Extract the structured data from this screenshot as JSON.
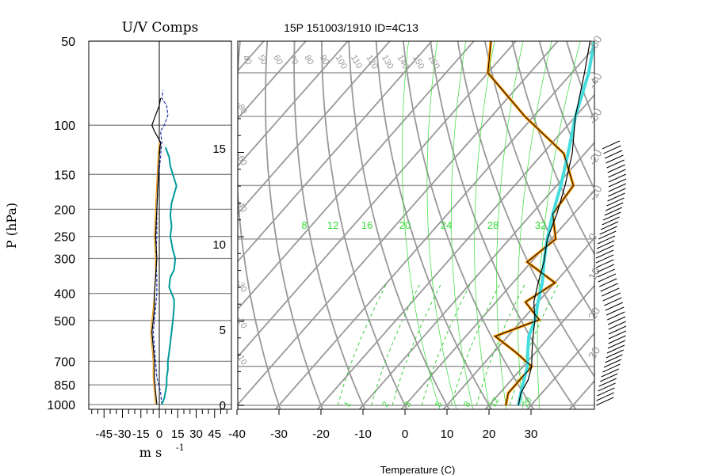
{
  "chart_data": [
    {
      "type": "line",
      "title": "U/V Comps",
      "xlabel": "m s",
      "xlabel_exponent": "-1",
      "ylabel": "P (hPa)",
      "xlim": [
        -55,
        55
      ],
      "ylim": [
        1000,
        50
      ],
      "y_scale": "log",
      "x_ticks": [
        "-45",
        "-30",
        "-15",
        "0",
        "15",
        "30",
        "45"
      ],
      "y_ticks": [
        "50",
        "100",
        "150",
        "200",
        "250",
        "300",
        "400",
        "500",
        "700",
        "850",
        "1000"
      ],
      "series": [
        {
          "color": "#2233aa",
          "points": [
            [
              2,
              1000
            ],
            [
              1,
              900
            ],
            [
              -2,
              800
            ],
            [
              -3,
              700
            ],
            [
              -4,
              620
            ],
            [
              -5,
              550
            ],
            [
              -4,
              500
            ],
            [
              -3,
              450
            ],
            [
              -2,
              400
            ],
            [
              -2,
              350
            ],
            [
              -3,
              300
            ],
            [
              -2,
              250
            ],
            [
              -2,
              200
            ],
            [
              -1,
              160
            ],
            [
              1,
              130
            ],
            [
              2,
              115
            ],
            [
              1,
              105
            ],
            [
              4,
              100
            ],
            [
              7,
              92
            ],
            [
              6,
              85
            ],
            [
              2,
              80
            ],
            [
              3,
              75
            ]
          ]
        },
        {
          "color": "#ee9911",
          "points": [
            [
              -3,
              1000
            ],
            [
              -4,
              900
            ],
            [
              -5,
              800
            ],
            [
              -5,
              700
            ],
            [
              -6,
              620
            ],
            [
              -7,
              550
            ],
            [
              -6,
              500
            ],
            [
              -5,
              450
            ],
            [
              -4,
              400
            ],
            [
              -3,
              350
            ],
            [
              -3,
              300
            ],
            [
              -4,
              250
            ],
            [
              -3,
              200
            ],
            [
              -2,
              160
            ],
            [
              -1,
              130
            ],
            [
              0,
              115
            ]
          ]
        },
        {
          "color": "#000000",
          "points": [
            [
              -2,
              1000
            ],
            [
              -3,
              900
            ],
            [
              -4,
              800
            ],
            [
              -4,
              700
            ],
            [
              -5,
              620
            ],
            [
              -6,
              550
            ],
            [
              -5,
              500
            ],
            [
              -4,
              450
            ],
            [
              -4,
              400
            ],
            [
              -3,
              350
            ],
            [
              -2,
              300
            ],
            [
              -3,
              250
            ],
            [
              -2,
              200
            ],
            [
              -1,
              160
            ],
            [
              0,
              130
            ],
            [
              1,
              115
            ],
            [
              -4,
              105
            ],
            [
              -6,
              100
            ],
            [
              -3,
              92
            ],
            [
              0,
              85
            ],
            [
              1,
              80
            ]
          ]
        },
        {
          "color": "#009999",
          "points": [
            [
              2,
              1000
            ],
            [
              4,
              950
            ],
            [
              5,
              900
            ],
            [
              6,
              850
            ],
            [
              6,
              800
            ],
            [
              7,
              750
            ],
            [
              7,
              700
            ],
            [
              8,
              650
            ],
            [
              9,
              600
            ],
            [
              10,
              550
            ],
            [
              11,
              500
            ],
            [
              12,
              450
            ],
            [
              12,
              420
            ],
            [
              10,
              400
            ],
            [
              8,
              380
            ],
            [
              9,
              350
            ],
            [
              12,
              330
            ],
            [
              13,
              300
            ],
            [
              11,
              280
            ],
            [
              9,
              250
            ],
            [
              10,
              230
            ],
            [
              9,
              210
            ],
            [
              10,
              190
            ],
            [
              14,
              165
            ],
            [
              11,
              150
            ],
            [
              9,
              140
            ],
            [
              8,
              130
            ],
            [
              5,
              120
            ]
          ]
        }
      ]
    },
    {
      "type": "line",
      "title": "15P 151003/1910 ID=4C13",
      "xlabel": "Temperature (C)",
      "xlim": [
        -45,
        40
      ],
      "ylim": [
        1000,
        100
      ],
      "x_ticks": [
        "-40",
        "-30",
        "-20",
        "-10",
        "0",
        "10",
        "20",
        "30"
      ],
      "height_ticks_km": [
        "0",
        "5",
        "10",
        "15"
      ],
      "mixing_ratio_labels_bottom": [
        "1",
        "2",
        "3",
        "5",
        "8",
        "12",
        "20"
      ],
      "moist_adiabat_labels": [
        "8",
        "12",
        "16",
        "20",
        "24",
        "28",
        "32"
      ],
      "dry_adiabat_labels": [
        "40",
        "50",
        "60",
        "70",
        "80",
        "90",
        "100",
        "110",
        "120",
        "130",
        "140",
        "150",
        "160"
      ],
      "isotherm_labels_left": [
        "-80",
        "-60",
        "-40",
        "-30",
        "-20",
        "-10"
      ],
      "isotherm_labels_right": [
        "-50",
        "-40",
        "-30",
        "-20",
        "-10",
        "0",
        "10",
        "20",
        "30"
      ],
      "series": [
        {
          "name_shown": "",
          "role": "temperature",
          "color": "#000000",
          "points": [
            [
              27,
              1000
            ],
            [
              25,
              950
            ],
            [
              24,
              900
            ],
            [
              22,
              850
            ],
            [
              19,
              800
            ],
            [
              16,
              750
            ],
            [
              13,
              700
            ],
            [
              9,
              650
            ],
            [
              6,
              600
            ],
            [
              3,
              550
            ],
            [
              -1,
              500
            ],
            [
              -4,
              450
            ],
            [
              -8,
              400
            ],
            [
              -13,
              350
            ],
            [
              -20,
              300
            ],
            [
              -27,
              250
            ],
            [
              -36,
              200
            ],
            [
              -46,
              170
            ],
            [
              -56,
              150
            ],
            [
              -60,
              140
            ],
            [
              -65,
              125
            ],
            [
              -68,
              110
            ],
            [
              -70,
              100
            ],
            [
              -74,
              90
            ]
          ]
        },
        {
          "role": "dewpoint",
          "color": "#000000",
          "points": [
            [
              24,
              1000
            ],
            [
              22,
              950
            ],
            [
              22,
              900
            ],
            [
              22,
              850
            ],
            [
              15,
              800
            ],
            [
              7,
              750
            ],
            [
              14,
              700
            ],
            [
              7,
              650
            ],
            [
              10,
              600
            ],
            [
              -1,
              550
            ],
            [
              1,
              500
            ],
            [
              -5,
              450
            ],
            [
              -6,
              400
            ],
            [
              -15,
              350
            ],
            [
              -32,
              300
            ],
            [
              -50,
              250
            ],
            [
              -60,
              200
            ]
          ]
        },
        {
          "role": "parcel",
          "color": "#44dddd",
          "points": [
            [
              27,
              1000
            ],
            [
              25,
              950
            ],
            [
              23,
              900
            ],
            [
              21,
              850
            ],
            [
              18,
              800
            ],
            [
              15,
              750
            ],
            [
              13,
              700
            ],
            [
              10,
              650
            ],
            [
              7,
              600
            ],
            [
              3,
              550
            ],
            [
              -1,
              500
            ],
            [
              -5,
              450
            ],
            [
              -9,
              400
            ],
            [
              -14,
              350
            ],
            [
              -20,
              300
            ],
            [
              -26,
              250
            ],
            [
              -35,
              200
            ],
            [
              -45,
              170
            ],
            [
              -52,
              150
            ],
            [
              -60,
              130
            ],
            [
              -68,
              110
            ],
            [
              -73,
              100
            ]
          ]
        },
        {
          "role": "dewpoint-smoothed",
          "color": "#ff9900",
          "points": [
            [
              24,
              1000
            ],
            [
              22,
              950
            ],
            [
              22,
              900
            ],
            [
              22,
              850
            ],
            [
              15,
              800
            ],
            [
              7,
              750
            ],
            [
              14,
              700
            ],
            [
              7,
              650
            ],
            [
              10,
              600
            ],
            [
              -1,
              550
            ],
            [
              1,
              500
            ],
            [
              -5,
              450
            ],
            [
              -6,
              400
            ],
            [
              -15,
              350
            ],
            [
              -32,
              300
            ],
            [
              -50,
              250
            ],
            [
              -60,
              200
            ]
          ]
        }
      ]
    }
  ]
}
